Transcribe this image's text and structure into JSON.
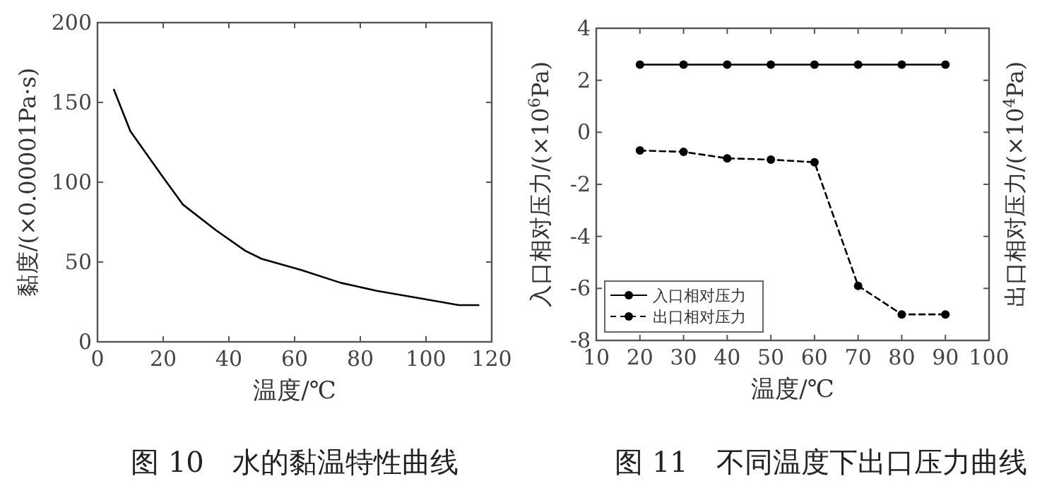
{
  "chart_data": [
    {
      "type": "line",
      "title": "图 10　水的黏温特性曲线",
      "xlabel": "温度/℃",
      "ylabel": "黏度/(×0.00001Pa·s)",
      "xlim": [
        0,
        120
      ],
      "ylim": [
        0,
        200
      ],
      "xticks": [
        0,
        20,
        40,
        60,
        80,
        100,
        120
      ],
      "yticks": [
        0,
        50,
        100,
        150,
        200
      ],
      "series": [
        {
          "color": "#000000",
          "x": [
            5,
            10,
            20,
            26,
            36,
            45,
            50,
            62,
            74,
            85,
            99,
            110,
            116
          ],
          "values": [
            158,
            132,
            103,
            86,
            70,
            57,
            52,
            45,
            37,
            32,
            27,
            23,
            23
          ]
        }
      ]
    },
    {
      "type": "line",
      "title": "图 11　不同温度下出口压力曲线",
      "xlabel": "温度/℃",
      "ylabel": "入口相对压力/(×10$^{6}$Pa)",
      "y2label": "出口相对压力/(×10$^{4}$Pa)",
      "xlim": [
        10,
        100
      ],
      "ylim": [
        -8,
        4
      ],
      "xticks": [
        10,
        20,
        30,
        40,
        50,
        60,
        70,
        80,
        90,
        100
      ],
      "yticks": [
        -8,
        -6,
        -4,
        -2,
        0,
        2,
        4
      ],
      "marker": "circle",
      "legend": "bottom left",
      "x": [
        20,
        30,
        40,
        50,
        60,
        70,
        80,
        90
      ],
      "series": [
        {
          "name": "入口相对压力",
          "color": "#000000",
          "line_style": "solid",
          "values": [
            2.6,
            2.6,
            2.6,
            2.6,
            2.6,
            2.6,
            2.6,
            2.6
          ]
        },
        {
          "name": "出口相对压力",
          "color": "#000000",
          "line_style": "dashed",
          "values": [
            -0.7,
            -0.75,
            -1.0,
            -1.05,
            -1.15,
            -5.9,
            -7.0,
            -7.0
          ]
        }
      ]
    }
  ]
}
